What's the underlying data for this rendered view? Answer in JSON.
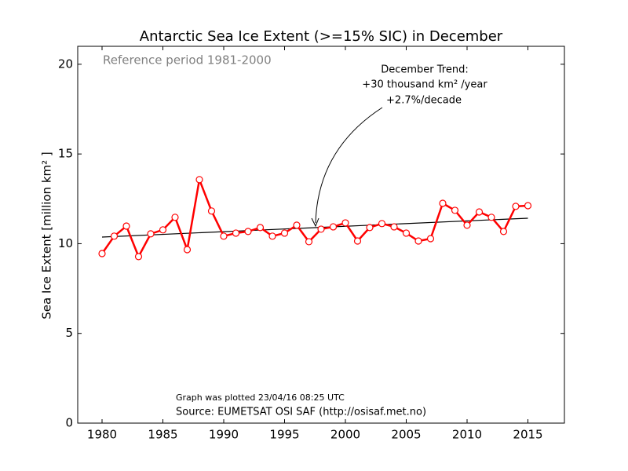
{
  "chart_data": {
    "type": "line",
    "title": "Antarctic Sea Ice Extent (>=15% SIC) in December",
    "subtitle": "Reference period 1981-2000",
    "ylabel": "Sea Ice Extent [million km² ]",
    "annotation": [
      "December Trend:",
      "+30 thousand km² /year",
      "+2.7%/decade"
    ],
    "footer_small": "Graph was plotted 23/04/16 08:25 UTC",
    "footer": "Source: EUMETSAT OSI SAF (http://osisaf.met.no)",
    "x": [
      1980,
      1981,
      1982,
      1983,
      1984,
      1985,
      1986,
      1987,
      1988,
      1989,
      1990,
      1991,
      1992,
      1993,
      1994,
      1995,
      1996,
      1997,
      1998,
      1999,
      2000,
      2001,
      2002,
      2003,
      2004,
      2005,
      2006,
      2007,
      2008,
      2009,
      2010,
      2011,
      2012,
      2013,
      2014,
      2015
    ],
    "values": [
      9.45,
      10.42,
      10.98,
      9.28,
      10.55,
      10.77,
      11.47,
      9.67,
      13.57,
      11.82,
      10.42,
      10.59,
      10.68,
      10.9,
      10.42,
      10.59,
      11.03,
      10.11,
      10.81,
      10.94,
      11.16,
      10.15,
      10.9,
      11.12,
      10.94,
      10.59,
      10.15,
      10.28,
      12.25,
      11.86,
      11.03,
      11.77,
      11.47,
      10.68,
      12.08,
      12.12
    ],
    "color": "#ff0000",
    "trend": {
      "x": [
        1980,
        2015
      ],
      "values": [
        10.37,
        11.42
      ],
      "color": "#000000"
    },
    "xlim": [
      1978,
      2018
    ],
    "ylim": [
      0,
      21
    ],
    "xticks": [
      1980,
      1985,
      1990,
      1995,
      2000,
      2005,
      2010,
      2015
    ],
    "yticks": [
      0,
      5,
      10,
      15,
      20
    ],
    "grid": false
  }
}
